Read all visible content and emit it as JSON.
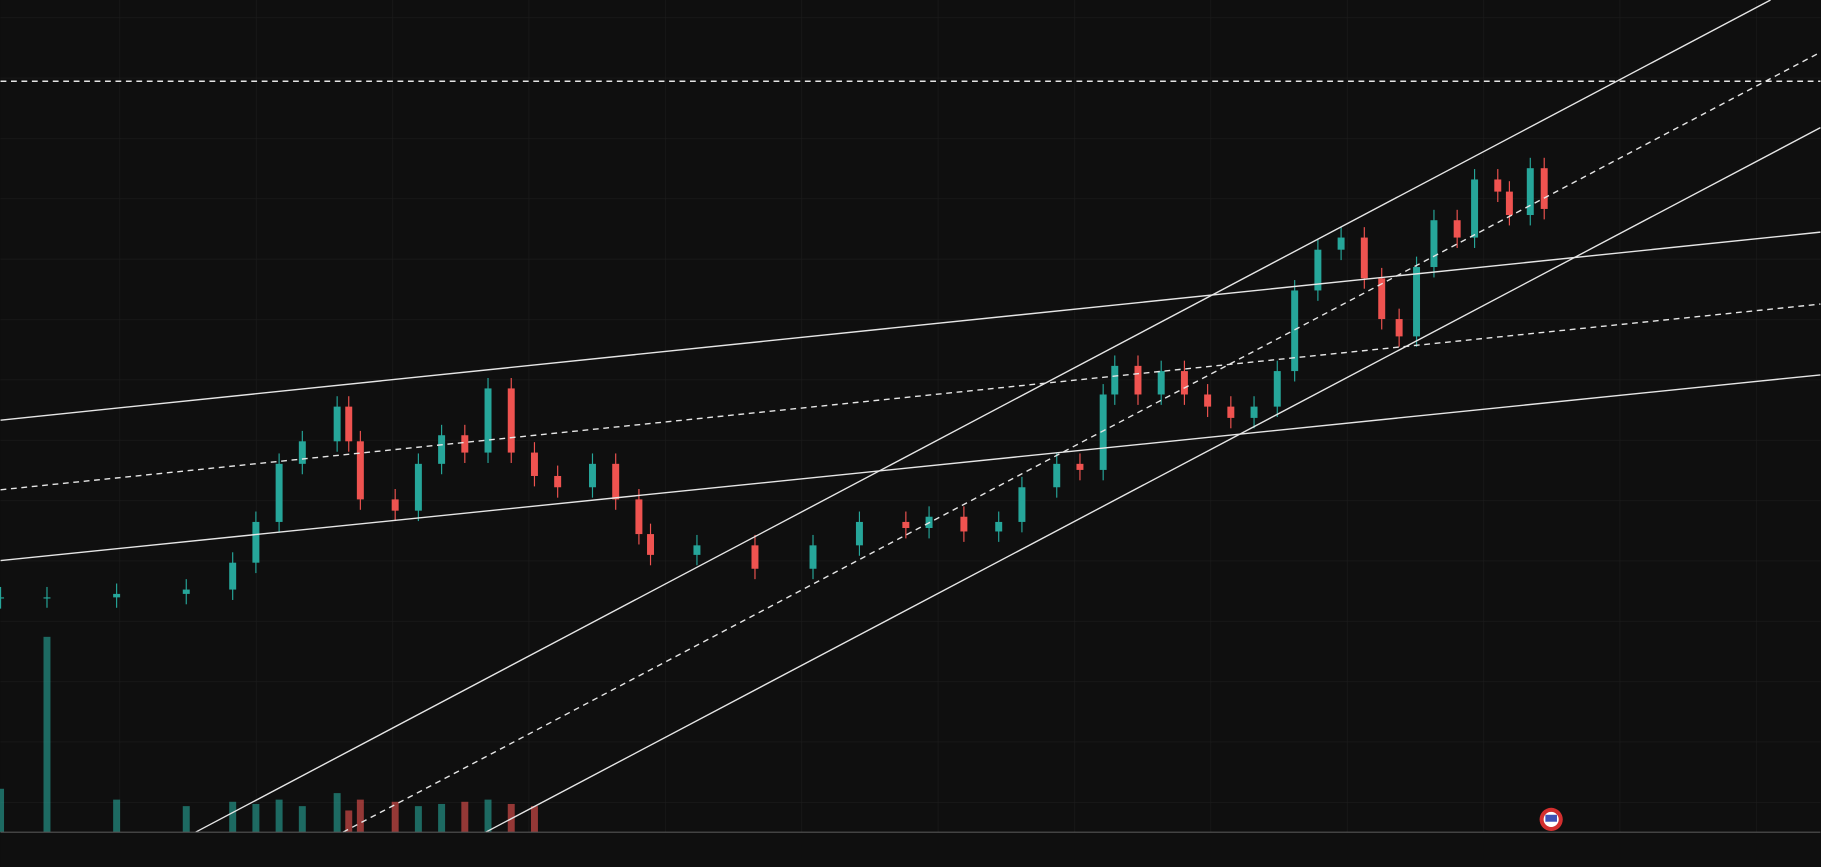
{
  "chart_data": {
    "type": "candlestick",
    "x": [
      0,
      40,
      100,
      160,
      200,
      220,
      240,
      260,
      290,
      300,
      310,
      340,
      360,
      380,
      400,
      420,
      440,
      460,
      480,
      510,
      530,
      550,
      560,
      600,
      650,
      700,
      740,
      780,
      800,
      830,
      860,
      880,
      910,
      930,
      950,
      960,
      980,
      1000,
      1020,
      1040,
      1060,
      1080,
      1100,
      1115,
      1135,
      1155,
      1175,
      1190,
      1205,
      1220,
      1235,
      1255,
      1270,
      1290,
      1300,
      1318,
      1330
    ],
    "open": [
      31.0,
      31.1,
      31.1,
      31.5,
      32.0,
      35.1,
      39.8,
      46.5,
      49.1,
      53.1,
      49.1,
      42.4,
      41.1,
      46.5,
      49.8,
      47.8,
      55.2,
      47.8,
      45.1,
      43.8,
      46.5,
      42.4,
      38.4,
      36.0,
      37.1,
      34.4,
      37.1,
      39.8,
      39.1,
      40.4,
      38.7,
      39.8,
      43.8,
      46.5,
      45.8,
      54.5,
      57.8,
      54.5,
      57.2,
      54.5,
      53.1,
      51.8,
      53.1,
      57.2,
      66.5,
      71.2,
      72.6,
      67.9,
      63.2,
      61.2,
      69.2,
      74.6,
      72.6,
      79.3,
      77.9,
      75.2,
      80.6
    ],
    "high": [
      32.3,
      32.3,
      32.7,
      33.2,
      36.3,
      41.0,
      47.7,
      50.3,
      54.3,
      54.3,
      50.3,
      43.6,
      47.7,
      51.0,
      51.0,
      56.4,
      56.4,
      49.0,
      46.3,
      47.7,
      47.7,
      43.6,
      39.6,
      38.3,
      38.3,
      38.3,
      41.0,
      41.0,
      41.6,
      41.6,
      41.0,
      45.0,
      47.7,
      47.7,
      55.7,
      59.0,
      59.0,
      58.4,
      58.4,
      55.7,
      54.3,
      54.3,
      58.4,
      67.7,
      72.4,
      73.8,
      73.8,
      69.1,
      64.4,
      70.4,
      75.8,
      75.8,
      80.5,
      80.5,
      79.1,
      81.8,
      81.8
    ],
    "low": [
      29.8,
      29.9,
      29.9,
      30.3,
      30.8,
      33.9,
      38.6,
      45.3,
      47.9,
      47.9,
      41.2,
      39.9,
      39.9,
      45.3,
      46.6,
      46.6,
      46.6,
      43.9,
      42.6,
      42.6,
      41.2,
      37.2,
      34.8,
      34.8,
      33.2,
      33.2,
      35.9,
      37.9,
      37.9,
      37.5,
      37.5,
      38.6,
      42.6,
      44.6,
      44.6,
      53.3,
      53.3,
      53.3,
      53.3,
      51.9,
      50.6,
      50.6,
      51.9,
      56.0,
      65.3,
      70.0,
      66.7,
      62.0,
      60.0,
      60.0,
      68.0,
      71.4,
      71.4,
      76.7,
      74.0,
      74.0,
      74.7
    ],
    "close": [
      31.1,
      31.1,
      31.5,
      32.0,
      35.1,
      39.8,
      46.5,
      49.1,
      53.1,
      49.1,
      42.4,
      41.1,
      46.5,
      49.8,
      47.8,
      55.2,
      47.8,
      45.1,
      43.8,
      46.5,
      42.4,
      38.4,
      36.0,
      37.1,
      34.4,
      37.1,
      39.8,
      39.1,
      40.4,
      38.7,
      39.8,
      43.8,
      46.5,
      45.8,
      54.5,
      57.8,
      54.5,
      57.2,
      54.5,
      53.1,
      51.8,
      53.1,
      57.2,
      66.5,
      71.2,
      72.6,
      67.9,
      63.2,
      61.2,
      69.2,
      74.6,
      72.6,
      79.3,
      77.9,
      75.2,
      80.6,
      75.9
    ],
    "volume": [
      20,
      90,
      15,
      12,
      14,
      13,
      15,
      12,
      18,
      10,
      15,
      14,
      12,
      13,
      14,
      15,
      13,
      12,
      null,
      null,
      null,
      null,
      null,
      null,
      null,
      null,
      null,
      null,
      null,
      null,
      null,
      null,
      null,
      null,
      null,
      null,
      null,
      null,
      null,
      null,
      null,
      null,
      null,
      null,
      null,
      null,
      null,
      null,
      null,
      null,
      null,
      null,
      null,
      null,
      null,
      null,
      null
    ],
    "xlim": [
      0,
      1568
    ],
    "ylim": [
      0,
      100
    ],
    "vlim": [
      0,
      100
    ],
    "up_color": "#26a69a",
    "down_color": "#ef5350"
  }
}
